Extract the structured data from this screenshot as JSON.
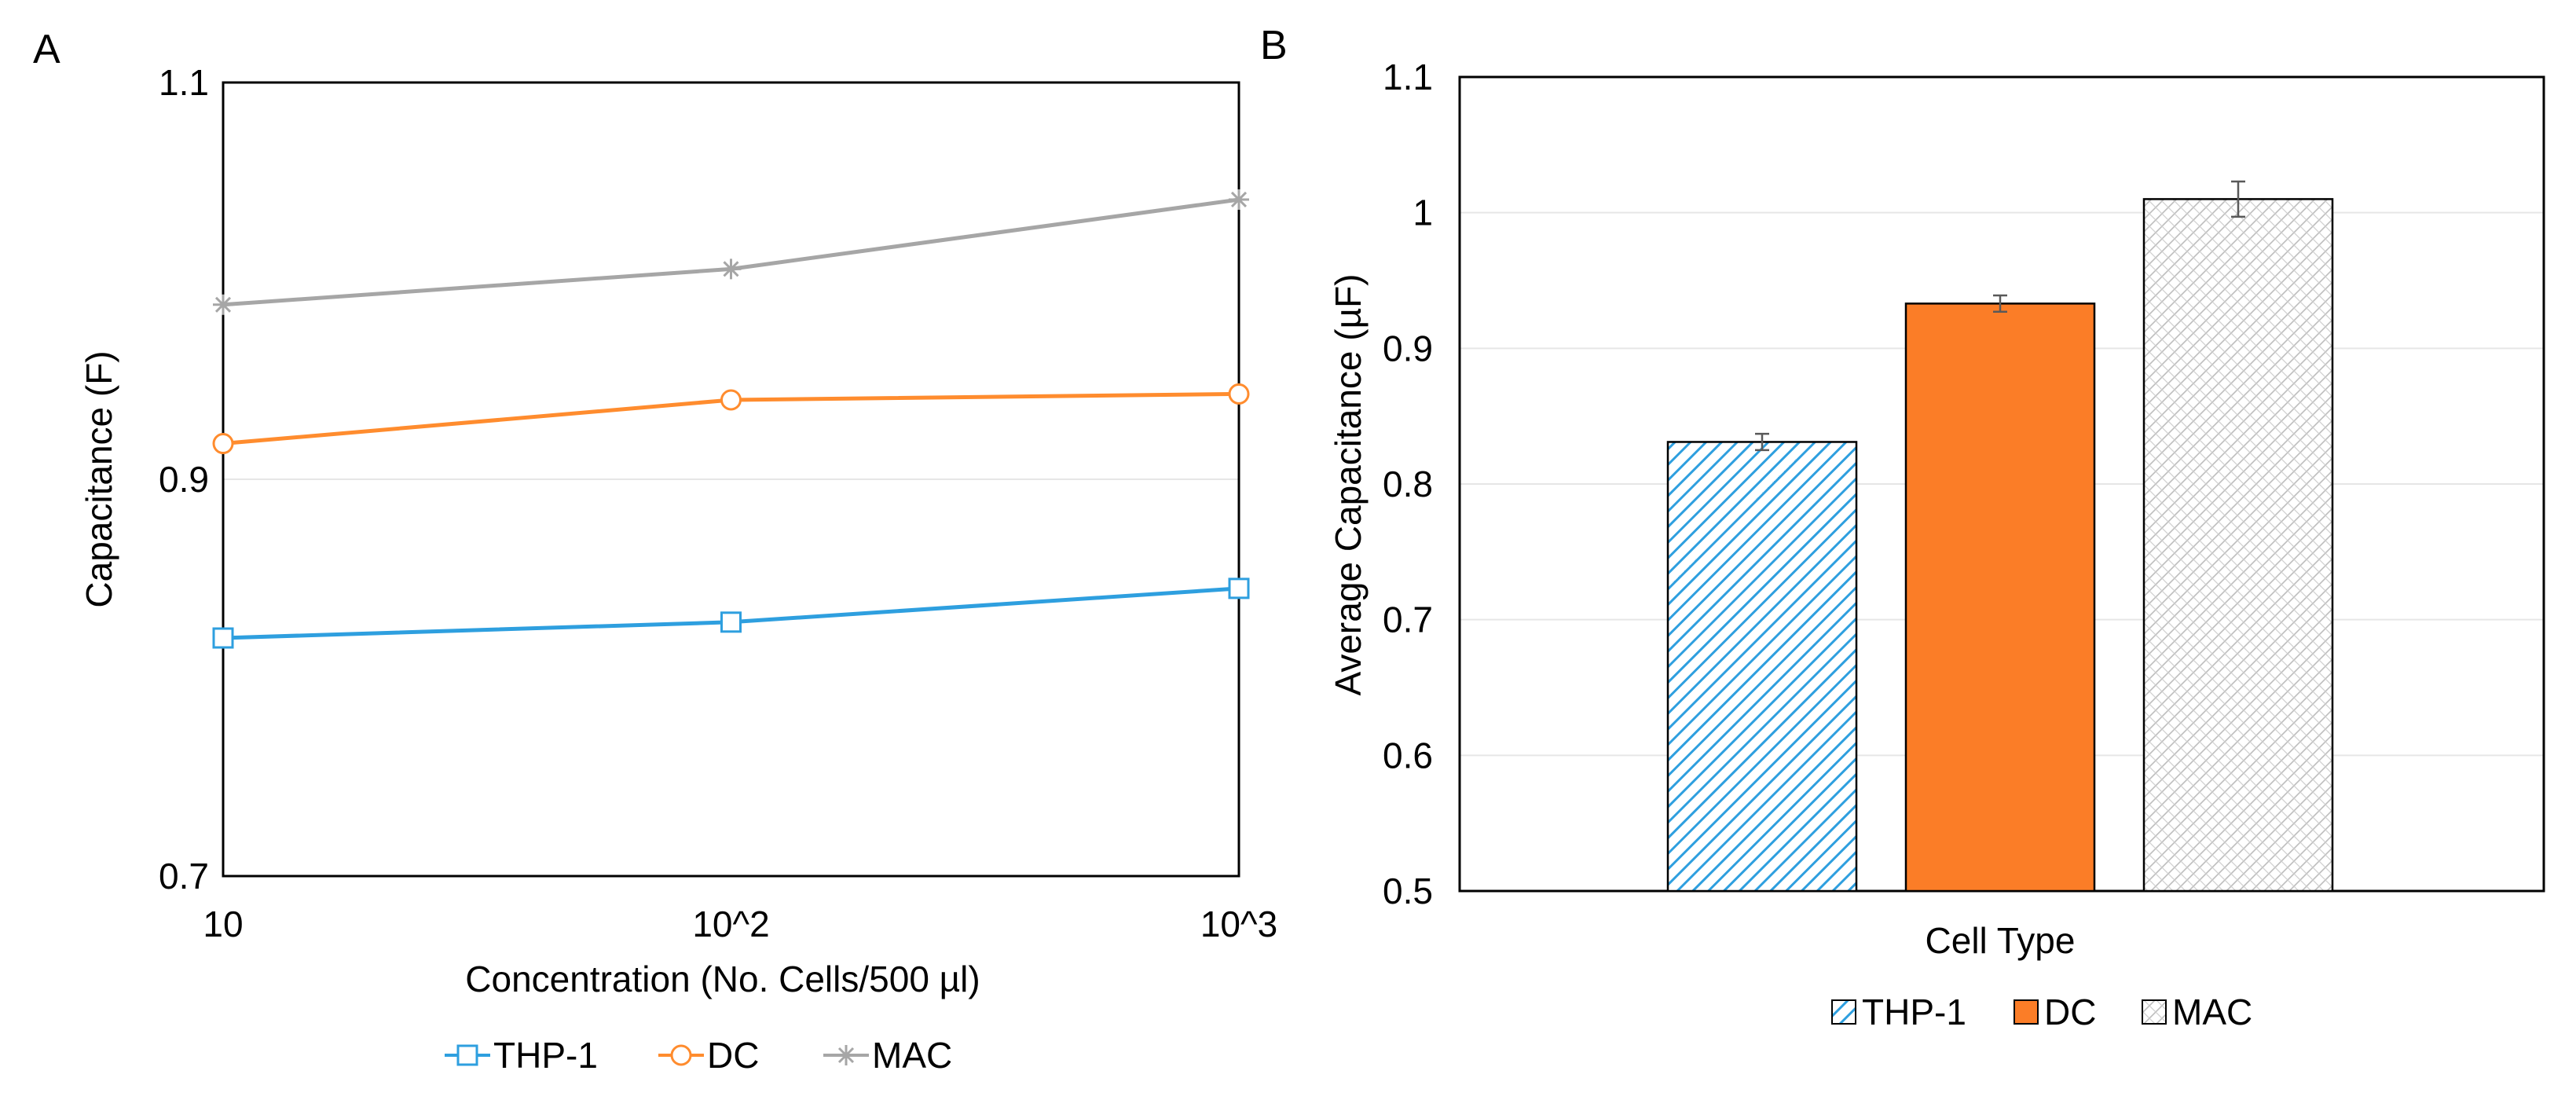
{
  "chart_data": [
    {
      "type": "line",
      "panel_label": "A",
      "xlabel": "Concentration (No. Cells/500 µl)",
      "ylabel": "Capacitance (F)",
      "categories": [
        "10",
        "10^2",
        "10^3"
      ],
      "ylim": [
        0.7,
        1.1
      ],
      "yticks": [
        "0.7",
        "0.9",
        "1.1"
      ],
      "ytick_values": [
        0.7,
        0.9,
        1.1
      ],
      "grid": true,
      "legend_position": "bottom",
      "series": [
        {
          "name": "THP-1",
          "values": [
            0.82,
            0.828,
            0.845
          ],
          "color": "#2e9fdf",
          "marker": "square"
        },
        {
          "name": "DC",
          "values": [
            0.918,
            0.94,
            0.943
          ],
          "color": "#ff8c2e",
          "marker": "circle"
        },
        {
          "name": "MAC",
          "values": [
            0.988,
            1.006,
            1.041
          ],
          "color": "#a6a6a6",
          "marker": "asterisk"
        }
      ]
    },
    {
      "type": "bar",
      "panel_label": "B",
      "xlabel": "Cell Type",
      "ylabel": "Average Capacitance (µF)",
      "categories": [
        "THP-1",
        "DC",
        "MAC"
      ],
      "values": [
        0.831,
        0.933,
        1.01
      ],
      "errors": [
        0.006,
        0.006,
        0.013
      ],
      "ylim": [
        0.5,
        1.1
      ],
      "yticks": [
        "0.5",
        "0.6",
        "0.7",
        "0.8",
        "0.9",
        "1",
        "1.1"
      ],
      "ytick_values": [
        0.5,
        0.6,
        0.7,
        0.8,
        0.9,
        1.0,
        1.1
      ],
      "grid": true,
      "legend_position": "bottom",
      "series": [
        {
          "name": "THP-1",
          "fill": "hatch-blue",
          "color": "#2e9fdf"
        },
        {
          "name": "DC",
          "fill": "solid",
          "color": "#fb7d27"
        },
        {
          "name": "MAC",
          "fill": "crosshatch-gray",
          "color": "#a6a6a6"
        }
      ]
    }
  ]
}
